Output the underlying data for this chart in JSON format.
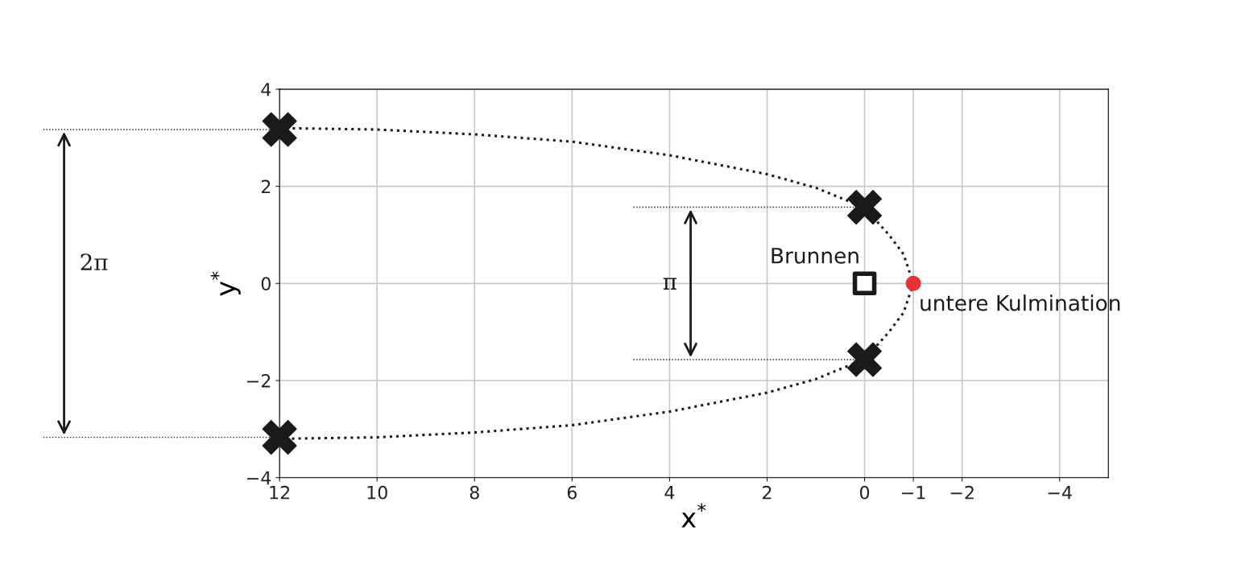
{
  "chart_data": {
    "type": "line",
    "xlabel": "x$^{*}$",
    "ylabel": "y$^{*}$",
    "xlim": [
      12,
      -5
    ],
    "ylim": [
      -4,
      4
    ],
    "xticks": [
      12,
      10,
      8,
      6,
      4,
      2,
      0,
      {
        "value": -1,
        "label": "−1"
      },
      {
        "value": -2,
        "label": "−2"
      },
      {
        "value": -4,
        "label": "−4"
      }
    ],
    "yticks": [
      {
        "value": -4,
        "label": "−4"
      },
      {
        "value": -2,
        "label": "−2"
      },
      0,
      2,
      4
    ],
    "grid": true,
    "series": [
      {
        "color": "#1a1a1a",
        "line_style": "dotted",
        "x": [
          12,
          10,
          8,
          6,
          4,
          2,
          1,
          0,
          -0.5,
          -0.8,
          -1,
          -0.8,
          -0.5,
          0,
          1,
          2,
          4,
          6,
          8,
          10,
          12
        ],
        "values": [
          3.2,
          3.17,
          3.07,
          2.92,
          2.64,
          2.25,
          1.97,
          1.56,
          1.0,
          0.6,
          0,
          -0.6,
          -1.0,
          -1.56,
          -1.97,
          -2.25,
          -2.64,
          -2.92,
          -3.07,
          -3.17,
          -3.2
        ]
      },
      {
        "type": "scatter",
        "marker": "cross",
        "color": "#1a1a1a",
        "x": [
          12,
          0,
          0,
          12
        ],
        "values": [
          3.17,
          1.57,
          -1.57,
          -3.17
        ]
      },
      {
        "type": "scatter",
        "marker": "square",
        "color": "#1a1a1a",
        "x": [
          0
        ],
        "values": [
          0
        ]
      },
      {
        "type": "scatter",
        "marker": "circle",
        "color": "#e8303a",
        "x": [
          -1
        ],
        "values": [
          0
        ]
      }
    ],
    "annotations": [
      {
        "text": "Brunnen",
        "x": 0,
        "y": 0
      },
      {
        "text": "untere Kulmination",
        "x": -1,
        "y": 0
      },
      "π",
      "2π"
    ]
  }
}
